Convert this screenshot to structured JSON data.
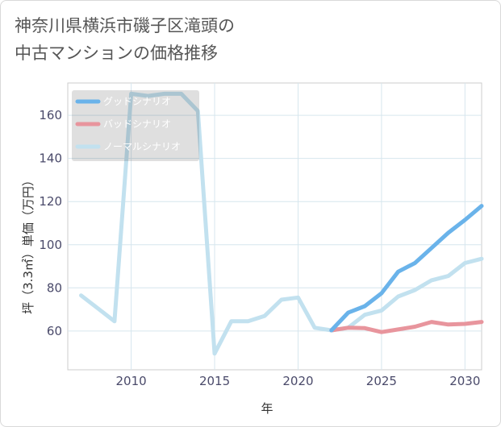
{
  "title_line1": "神奈川県横浜市磯子区滝頭の",
  "title_line2": "中古マンションの価格推移",
  "chart_data": {
    "type": "line",
    "xlabel": "年",
    "ylabel": "坪（3.3㎡）単価（万円）",
    "xlim": [
      2006.2,
      2031
    ],
    "ylim": [
      42,
      175
    ],
    "x_ticks": [
      2010,
      2015,
      2020,
      2025,
      2030
    ],
    "y_ticks": [
      60,
      80,
      100,
      120,
      140,
      160
    ],
    "grid": true,
    "legend_position": "top-left",
    "series": [
      {
        "name": "グッドシナリオ",
        "color": "#6ab3ea",
        "x": [
          2022,
          2023,
          2024,
          2025,
          2026,
          2027,
          2028,
          2029,
          2030,
          2031
        ],
        "y": [
          60.3,
          68.5,
          71.5,
          77.5,
          87.5,
          91.5,
          98.5,
          105.5,
          111.5,
          118
        ]
      },
      {
        "name": "バッドシナリオ",
        "color": "#e8959d",
        "x": [
          2022,
          2023,
          2024,
          2025,
          2026,
          2027,
          2028,
          2029,
          2030,
          2031
        ],
        "y": [
          60.3,
          61.5,
          61.3,
          59.5,
          60.7,
          62,
          64.2,
          63,
          63.3,
          64.2
        ]
      },
      {
        "name": "ノーマルシナリオ",
        "color": "#c2e1ef",
        "x": [
          2007,
          2008,
          2009,
          2010,
          2011,
          2012,
          2013,
          2014,
          2015,
          2016,
          2017,
          2018,
          2019,
          2020,
          2021,
          2022,
          2023,
          2024,
          2025,
          2026,
          2027,
          2028,
          2029,
          2030,
          2031
        ],
        "y": [
          76.5,
          70.5,
          64.5,
          170,
          169,
          170,
          170,
          162,
          49.5,
          64.5,
          64.5,
          67,
          74.5,
          75.5,
          61.5,
          60.3,
          61.5,
          67.5,
          69.5,
          76,
          79,
          83.5,
          85.5,
          91.5,
          93.5
        ]
      }
    ]
  }
}
